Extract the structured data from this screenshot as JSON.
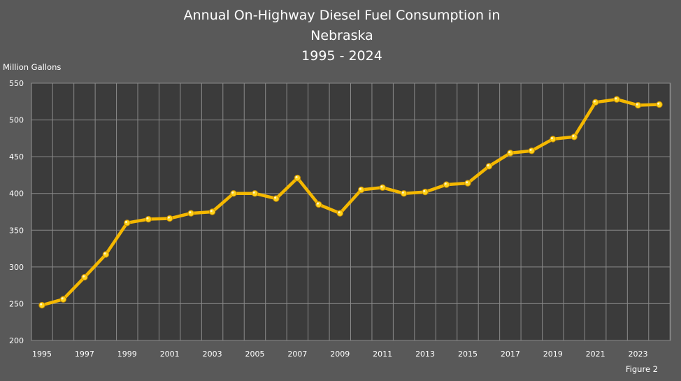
{
  "chart_data": {
    "type": "line",
    "title_lines": [
      "Annual On-Highway Diesel Fuel Consumption in",
      "Nebraska",
      "1995 - 2024"
    ],
    "ylabel": "Million Gallons",
    "xlabel": "",
    "figure_label": "Figure 2",
    "ylim": [
      200,
      550
    ],
    "y_ticks": [
      200,
      250,
      300,
      350,
      400,
      450,
      500,
      550
    ],
    "x_tick_labels": [
      "1995",
      "1997",
      "1999",
      "2001",
      "2003",
      "2005",
      "2007",
      "2009",
      "2011",
      "2013",
      "2015",
      "2017",
      "2019",
      "2021",
      "2023"
    ],
    "grid": true,
    "legend": "none",
    "colors": {
      "background": "#595959",
      "plot": "#3b3b3b",
      "grid": "#8a8a8a",
      "line": "#f5b800",
      "marker": "#ffd21a"
    },
    "series": [
      {
        "x": [
          1995,
          1996,
          1997,
          1998,
          1999,
          2000,
          2001,
          2002,
          2003,
          2004,
          2005,
          2006,
          2007,
          2008,
          2009,
          2010,
          2011,
          2012,
          2013,
          2014,
          2015,
          2016,
          2017,
          2018,
          2019,
          2020,
          2021,
          2022,
          2023,
          2024
        ],
        "values": [
          248,
          256,
          286,
          317,
          360,
          365,
          366,
          373,
          375,
          400,
          400,
          393,
          421,
          385,
          373,
          405,
          408,
          400,
          402,
          412,
          414,
          437,
          455,
          458,
          474,
          477,
          524,
          528,
          520,
          521
        ]
      }
    ]
  }
}
